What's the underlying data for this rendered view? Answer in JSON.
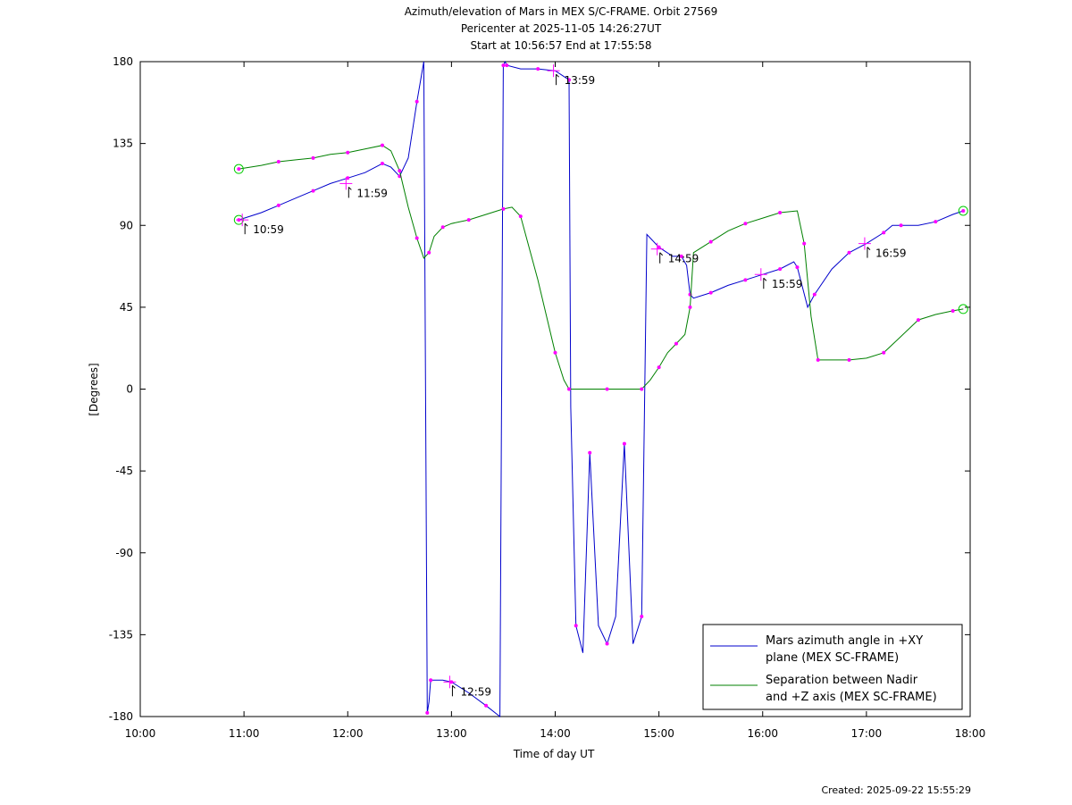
{
  "chart_data": {
    "type": "line",
    "title_lines": [
      "Azimuth/elevation of Mars in MEX S/C-FRAME.  Orbit 27569",
      "Pericenter at 2025-11-05 14:26:27UT",
      "Start at 10:56:57 End at 17:55:58"
    ],
    "xlabel": "Time of day UT",
    "ylabel": "[Degrees]",
    "created": "Created: 2025-09-22 15:55:29",
    "xlim": [
      "10:00",
      "18:00"
    ],
    "ylim": [
      -180,
      180
    ],
    "x_ticks": [
      "10:00",
      "11:00",
      "12:00",
      "13:00",
      "14:00",
      "15:00",
      "16:00",
      "17:00",
      "18:00"
    ],
    "y_ticks": [
      180,
      135,
      90,
      45,
      0,
      -45,
      -90,
      -135,
      -180
    ],
    "grid": false,
    "legend_position": "bottom-right",
    "series": [
      {
        "name": "Mars azimuth angle in +XY plane (MEX SC-FRAME)",
        "legend_lines": [
          "Mars azimuth angle in +XY",
          "plane (MEX SC-FRAME)"
        ],
        "color": "#0000cc",
        "x": [
          "10:57",
          "11:10",
          "11:20",
          "11:30",
          "11:40",
          "11:50",
          "12:00",
          "12:10",
          "12:20",
          "12:25",
          "12:30",
          "12:35",
          "12:40",
          "12:44",
          "12:46",
          "12:47",
          "12:48",
          "12:55",
          "13:00",
          "13:10",
          "13:20",
          "13:28",
          "13:30",
          "13:31",
          "13:32",
          "13:40",
          "13:50",
          "14:00",
          "14:08",
          "14:09",
          "14:12",
          "14:16",
          "14:20",
          "14:25",
          "14:30",
          "14:35",
          "14:40",
          "14:45",
          "14:50",
          "14:53",
          "15:00",
          "15:08",
          "15:13",
          "15:16",
          "15:18",
          "15:20",
          "15:30",
          "15:40",
          "15:50",
          "16:00",
          "16:10",
          "16:18",
          "16:20",
          "16:26",
          "16:30",
          "16:40",
          "16:50",
          "17:00",
          "17:10",
          "17:15",
          "17:20",
          "17:30",
          "17:40",
          "17:50",
          "17:56"
        ],
        "y": [
          93,
          97,
          101,
          105,
          109,
          113,
          116,
          119,
          124,
          122,
          117,
          127,
          158,
          180,
          -178,
          -172,
          -160,
          -160,
          -161,
          -167,
          -174,
          -180,
          178,
          180,
          178,
          176,
          176,
          175,
          170,
          -10,
          -130,
          -145,
          -35,
          -130,
          -140,
          -125,
          -30,
          -140,
          -125,
          85,
          78,
          73,
          73,
          68,
          52,
          50,
          53,
          57,
          60,
          63,
          66,
          70,
          67,
          45,
          52,
          66,
          75,
          80,
          86,
          90,
          90,
          90,
          92,
          96,
          98
        ]
      },
      {
        "name": "Separation between Nadir and +Z axis (MEX SC-FRAME)",
        "legend_lines": [
          "Separation between Nadir",
          "and +Z axis (MEX SC-FRAME)"
        ],
        "color": "#008000",
        "x": [
          "10:57",
          "11:10",
          "11:20",
          "11:30",
          "11:40",
          "11:50",
          "12:00",
          "12:10",
          "12:20",
          "12:25",
          "12:30",
          "12:35",
          "12:40",
          "12:44",
          "12:47",
          "12:50",
          "12:55",
          "13:00",
          "13:10",
          "13:20",
          "13:30",
          "13:35",
          "13:40",
          "13:50",
          "14:00",
          "14:05",
          "14:08",
          "14:20",
          "14:30",
          "14:40",
          "14:50",
          "14:55",
          "15:00",
          "15:05",
          "15:10",
          "15:15",
          "15:18",
          "15:20",
          "15:30",
          "15:40",
          "15:50",
          "16:00",
          "16:10",
          "16:20",
          "16:24",
          "16:28",
          "16:32",
          "16:40",
          "16:50",
          "17:00",
          "17:10",
          "17:20",
          "17:30",
          "17:40",
          "17:50",
          "17:56"
        ],
        "y": [
          121,
          123,
          125,
          126,
          127,
          129,
          130,
          132,
          134,
          131,
          120,
          100,
          83,
          72,
          75,
          84,
          89,
          91,
          93,
          96,
          99,
          100,
          95,
          60,
          20,
          5,
          0,
          0,
          0,
          0,
          0,
          5,
          12,
          20,
          25,
          30,
          45,
          75,
          81,
          87,
          91,
          94,
          97,
          98,
          80,
          40,
          16,
          16,
          16,
          17,
          20,
          29,
          38,
          41,
          43,
          44
        ]
      }
    ],
    "markers": [
      {
        "label": "10:59",
        "x": "10:59",
        "y": 93
      },
      {
        "label": "11:59",
        "x": "11:59",
        "y": 113
      },
      {
        "label": "12:59",
        "x": "12:59",
        "y": -161
      },
      {
        "label": "13:59",
        "x": "13:59",
        "y": 175
      },
      {
        "label": "14:59",
        "x": "14:59",
        "y": 77
      },
      {
        "label": "15:59",
        "x": "15:59",
        "y": 63
      },
      {
        "label": "16:59",
        "x": "16:59",
        "y": 80
      }
    ]
  }
}
